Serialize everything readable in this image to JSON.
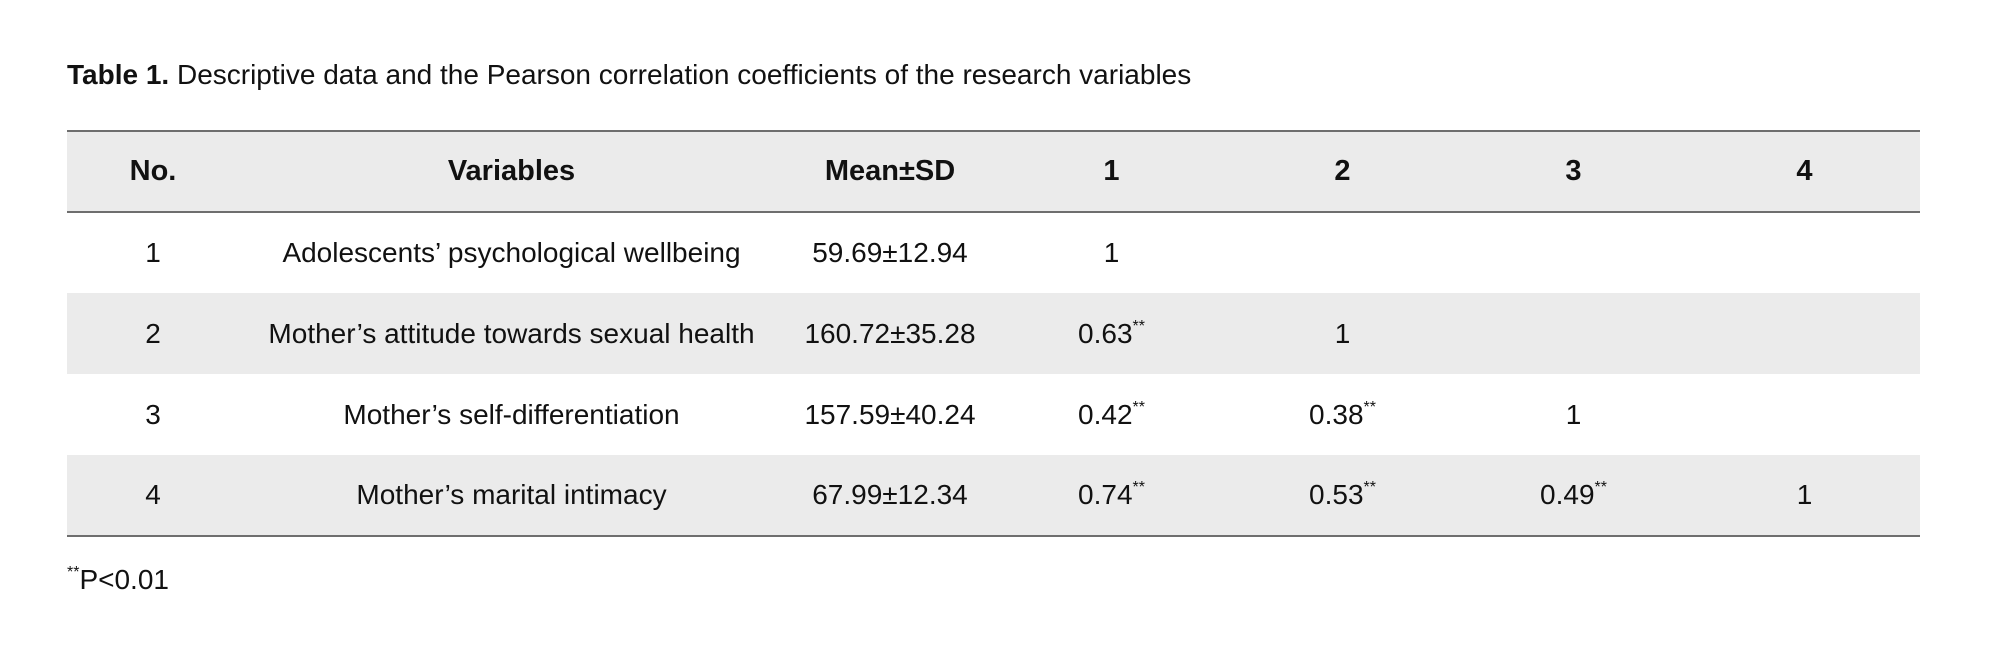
{
  "caption": {
    "label": "Table 1.",
    "text": "Descriptive data and the Pearson correlation coefficients of the research variables"
  },
  "table": {
    "headers": [
      "No.",
      "Variables",
      "Mean±SD",
      "1",
      "2",
      "3",
      "4"
    ],
    "rows": [
      {
        "no": "1",
        "variable": "Adolescents’ psychological wellbeing",
        "mean_sd": "59.69±12.94",
        "c1": "1",
        "c1_sig": "",
        "c2": "",
        "c2_sig": "",
        "c3": "",
        "c3_sig": "",
        "c4": "",
        "c4_sig": ""
      },
      {
        "no": "2",
        "variable": "Mother’s attitude towards sexual health",
        "mean_sd": "160.72±35.28",
        "c1": "0.63",
        "c1_sig": "**",
        "c2": "1",
        "c2_sig": "",
        "c3": "",
        "c3_sig": "",
        "c4": "",
        "c4_sig": ""
      },
      {
        "no": "3",
        "variable": "Mother’s self-differentiation",
        "mean_sd": "157.59±40.24",
        "c1": "0.42",
        "c1_sig": "**",
        "c2": "0.38",
        "c2_sig": "**",
        "c3": "1",
        "c3_sig": "",
        "c4": "",
        "c4_sig": ""
      },
      {
        "no": "4",
        "variable": "Mother’s marital intimacy",
        "mean_sd": "67.99±12.34",
        "c1": "0.74",
        "c1_sig": "**",
        "c2": "0.53",
        "c2_sig": "**",
        "c3": "0.49",
        "c3_sig": "**",
        "c4": "1",
        "c4_sig": ""
      }
    ]
  },
  "footnote": {
    "marker": "**",
    "text": "P<0.01"
  },
  "colors": {
    "row_shade": "#ebebeb",
    "rule": "#6e6e6e"
  }
}
